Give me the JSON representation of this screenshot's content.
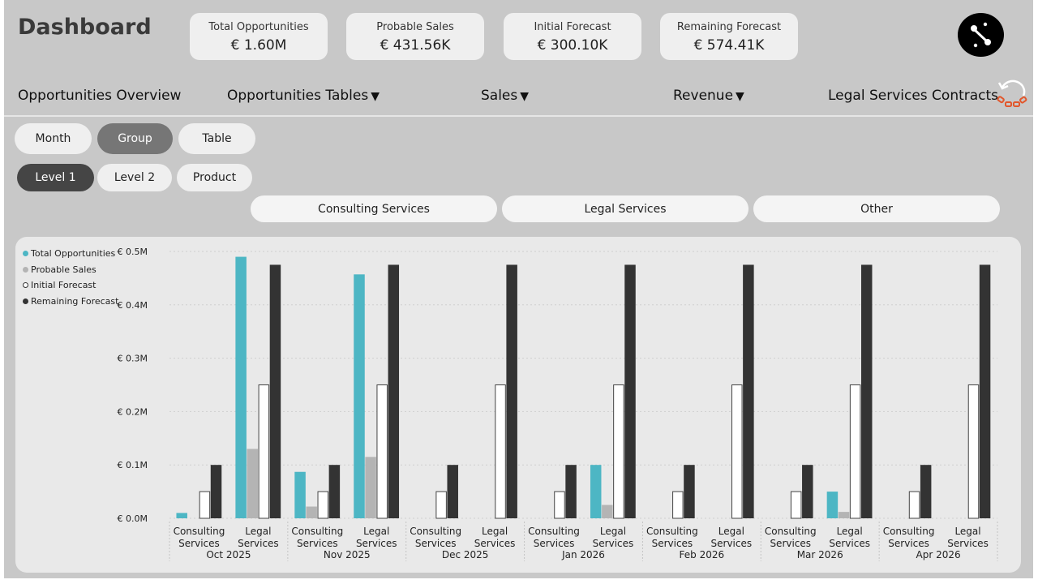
{
  "header": {
    "title": "Dashboard",
    "kpis": [
      {
        "label": "Total Opportunities",
        "value": "€ 1.60M"
      },
      {
        "label": "Probable Sales",
        "value": "€ 431.56K"
      },
      {
        "label": "Initial Forecast",
        "value": "€ 300.10K"
      },
      {
        "label": "Remaining Forecast",
        "value": "€ 574.41K"
      }
    ]
  },
  "nav": {
    "overview": "Opportunities Overview",
    "tables": "Opportunities Tables",
    "sales": "Sales",
    "revenue": "Revenue",
    "legal": "Legal Services Contracts",
    "dropdown_glyph": "▼"
  },
  "view_buttons": [
    "Month",
    "Group",
    "Table"
  ],
  "level_buttons": [
    "Level 1",
    "Level 2",
    "Product"
  ],
  "group_slicers": [
    "Consulting Services",
    "Legal Services",
    "Other"
  ],
  "colors": {
    "total": "#4db6c4",
    "probable": "#b4b4b4",
    "initial": "#ffffff",
    "remaining": "#333333",
    "selected_button": "#767676",
    "selected_level": "#454545"
  },
  "chart_data": {
    "type": "bar",
    "legend": [
      "Total Opportunities",
      "Probable Sales",
      "Initial Forecast",
      "Remaining Forecast"
    ],
    "ylim": [
      0,
      0.5
    ],
    "yticks": [
      "€ 0.0M",
      "€ 0.1M",
      "€ 0.2M",
      "€ 0.3M",
      "€ 0.4M",
      "€ 0.5M"
    ],
    "months": [
      "Oct 2025",
      "Nov 2025",
      "Dec 2025",
      "Jan 2026",
      "Feb 2026",
      "Mar 2026",
      "Apr 2026"
    ],
    "sub_labels": [
      [
        "Consulting",
        "Services"
      ],
      [
        "Legal",
        "Services"
      ]
    ],
    "groups": [
      {
        "month": "Oct 2025",
        "category": "Consulting Services",
        "values": [
          0.01,
          0.0,
          0.05,
          0.1
        ]
      },
      {
        "month": "Oct 2025",
        "category": "Legal Services",
        "values": [
          0.49,
          0.13,
          0.25,
          0.475
        ]
      },
      {
        "month": "Nov 2025",
        "category": "Consulting Services",
        "values": [
          0.087,
          0.022,
          0.05,
          0.1
        ]
      },
      {
        "month": "Nov 2025",
        "category": "Legal Services",
        "values": [
          0.457,
          0.115,
          0.25,
          0.475
        ]
      },
      {
        "month": "Dec 2025",
        "category": "Consulting Services",
        "values": [
          0,
          0,
          0.05,
          0.1
        ]
      },
      {
        "month": "Dec 2025",
        "category": "Legal Services",
        "values": [
          0,
          0,
          0.25,
          0.475
        ]
      },
      {
        "month": "Jan 2026",
        "category": "Consulting Services",
        "values": [
          0,
          0,
          0.05,
          0.1
        ]
      },
      {
        "month": "Jan 2026",
        "category": "Legal Services",
        "values": [
          0.1,
          0.025,
          0.25,
          0.475
        ]
      },
      {
        "month": "Feb 2026",
        "category": "Consulting Services",
        "values": [
          0,
          0,
          0.05,
          0.1
        ]
      },
      {
        "month": "Feb 2026",
        "category": "Legal Services",
        "values": [
          0,
          0,
          0.25,
          0.475
        ]
      },
      {
        "month": "Mar 2026",
        "category": "Consulting Services",
        "values": [
          0,
          0,
          0.05,
          0.1
        ]
      },
      {
        "month": "Mar 2026",
        "category": "Legal Services",
        "values": [
          0.05,
          0.012,
          0.25,
          0.475
        ]
      },
      {
        "month": "Apr 2026",
        "category": "Consulting Services",
        "values": [
          0,
          0,
          0.05,
          0.1
        ]
      },
      {
        "month": "Apr 2026",
        "category": "Legal Services",
        "values": [
          0,
          0,
          0.25,
          0.475
        ]
      }
    ]
  }
}
